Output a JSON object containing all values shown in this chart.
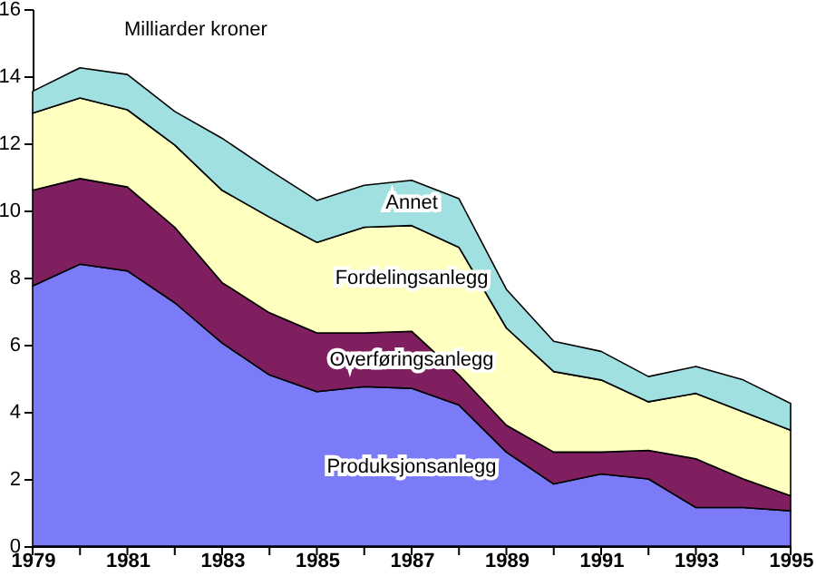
{
  "chart_data": {
    "type": "area",
    "stacked": true,
    "ylabel": "Milliarder kroner",
    "x": [
      1979,
      1980,
      1981,
      1982,
      1983,
      1984,
      1985,
      1986,
      1987,
      1988,
      1989,
      1990,
      1991,
      1992,
      1993,
      1994,
      1995
    ],
    "series": [
      {
        "name": "Produksjonsanlegg",
        "color": "#7b7bf7",
        "values": [
          7.75,
          8.4,
          8.2,
          7.25,
          6.05,
          5.1,
          4.6,
          4.75,
          4.7,
          4.2,
          2.8,
          1.85,
          2.15,
          2.0,
          1.15,
          1.15,
          1.05
        ]
      },
      {
        "name": "Overføringsanlegg",
        "color": "#7f1f5f",
        "values": [
          2.85,
          2.55,
          2.5,
          2.25,
          1.8,
          1.85,
          1.75,
          1.6,
          1.7,
          0.9,
          0.8,
          0.95,
          0.65,
          0.85,
          1.45,
          0.85,
          0.45
        ]
      },
      {
        "name": "Fordelingsanlegg",
        "color": "#ffffc0",
        "values": [
          2.3,
          2.4,
          2.3,
          2.45,
          2.75,
          2.85,
          2.7,
          3.15,
          3.15,
          3.8,
          2.9,
          2.4,
          2.15,
          1.45,
          1.95,
          2.0,
          1.95
        ]
      },
      {
        "name": "Annet",
        "color": "#a0e0e0",
        "values": [
          0.65,
          0.9,
          1.05,
          1.0,
          1.55,
          1.4,
          1.25,
          1.25,
          1.35,
          1.45,
          1.15,
          0.9,
          0.85,
          0.75,
          0.8,
          0.95,
          0.8
        ]
      }
    ],
    "xlim": [
      1979,
      1995
    ],
    "xticks": [
      1979,
      {
        "value": 1980,
        "label": null
      },
      1981,
      {
        "value": 1982,
        "label": null
      },
      1983,
      {
        "value": 1984,
        "label": null
      },
      1985,
      {
        "value": 1986,
        "label": null
      },
      1987,
      {
        "value": 1988,
        "label": null
      },
      1989,
      {
        "value": 1990,
        "label": null
      },
      1991,
      {
        "value": 1992,
        "label": null
      },
      1993,
      {
        "value": 1994,
        "label": null
      },
      1995
    ],
    "ylim": [
      0,
      16
    ],
    "yticks": [
      0,
      2,
      4,
      6,
      8,
      10,
      12,
      14,
      16
    ],
    "grid": false
  }
}
